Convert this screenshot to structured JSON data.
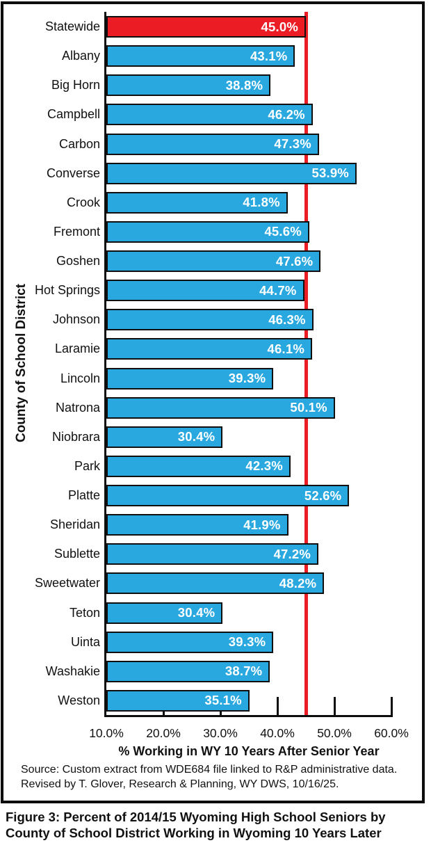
{
  "chart": {
    "y_axis_title": "County of School District",
    "x_axis_title": "% Working in WY 10 Years After Senior Year",
    "source_line1": "Source: Custom extract from WDE684 file linked to R&P administrative data.",
    "source_line2": "Revised by T. Glover, Research & Planning, WY DWS, 10/16/25.",
    "caption": "Figure 3: Percent of 2014/15 Wyoming High School Seniors by County of School District Working in Wyoming 10 Years Later",
    "colors": {
      "bar_blue": "#29A8E0",
      "bar_highlight_red": "#EC1C24",
      "reference_line_red": "#EC1C24",
      "axis_black": "#0d0d0d",
      "value_label_white": "#ffffff"
    }
  },
  "chart_data": {
    "type": "bar",
    "orientation": "horizontal",
    "title": "",
    "xlabel": "% Working in WY 10 Years After Senior Year",
    "ylabel": "County of School District",
    "xlim": [
      10,
      60
    ],
    "x_tick_values": [
      10,
      20,
      30,
      40,
      50,
      60
    ],
    "x_tick_labels": [
      "10.0%",
      "20.0%",
      "30.0%",
      "40.0%",
      "50.0%",
      "60.0%"
    ],
    "tick_mark_values": [
      20,
      30,
      40,
      50,
      60
    ],
    "reference_line_value": 45.0,
    "grid": false,
    "legend": false,
    "categories": [
      "Statewide",
      "Albany",
      "Big Horn",
      "Campbell",
      "Carbon",
      "Converse",
      "Crook",
      "Fremont",
      "Goshen",
      "Hot Springs",
      "Johnson",
      "Laramie",
      "Lincoln",
      "Natrona",
      "Niobrara",
      "Park",
      "Platte",
      "Sheridan",
      "Sublette",
      "Sweetwater",
      "Teton",
      "Uinta",
      "Washakie",
      "Weston"
    ],
    "values": [
      45.0,
      43.1,
      38.8,
      46.2,
      47.3,
      53.9,
      41.8,
      45.6,
      47.6,
      44.7,
      46.3,
      46.1,
      39.3,
      50.1,
      30.4,
      42.3,
      52.6,
      41.9,
      47.2,
      48.2,
      30.4,
      39.3,
      38.7,
      35.1
    ],
    "data_labels": [
      "45.0%",
      "43.1%",
      "38.8%",
      "46.2%",
      "47.3%",
      "53.9%",
      "41.8%",
      "45.6%",
      "47.6%",
      "44.7%",
      "46.3%",
      "46.1%",
      "39.3%",
      "50.1%",
      "30.4%",
      "42.3%",
      "52.6%",
      "41.9%",
      "47.2%",
      "48.2%",
      "30.4%",
      "39.3%",
      "38.7%",
      "35.1%"
    ],
    "highlight_category": "Statewide"
  }
}
